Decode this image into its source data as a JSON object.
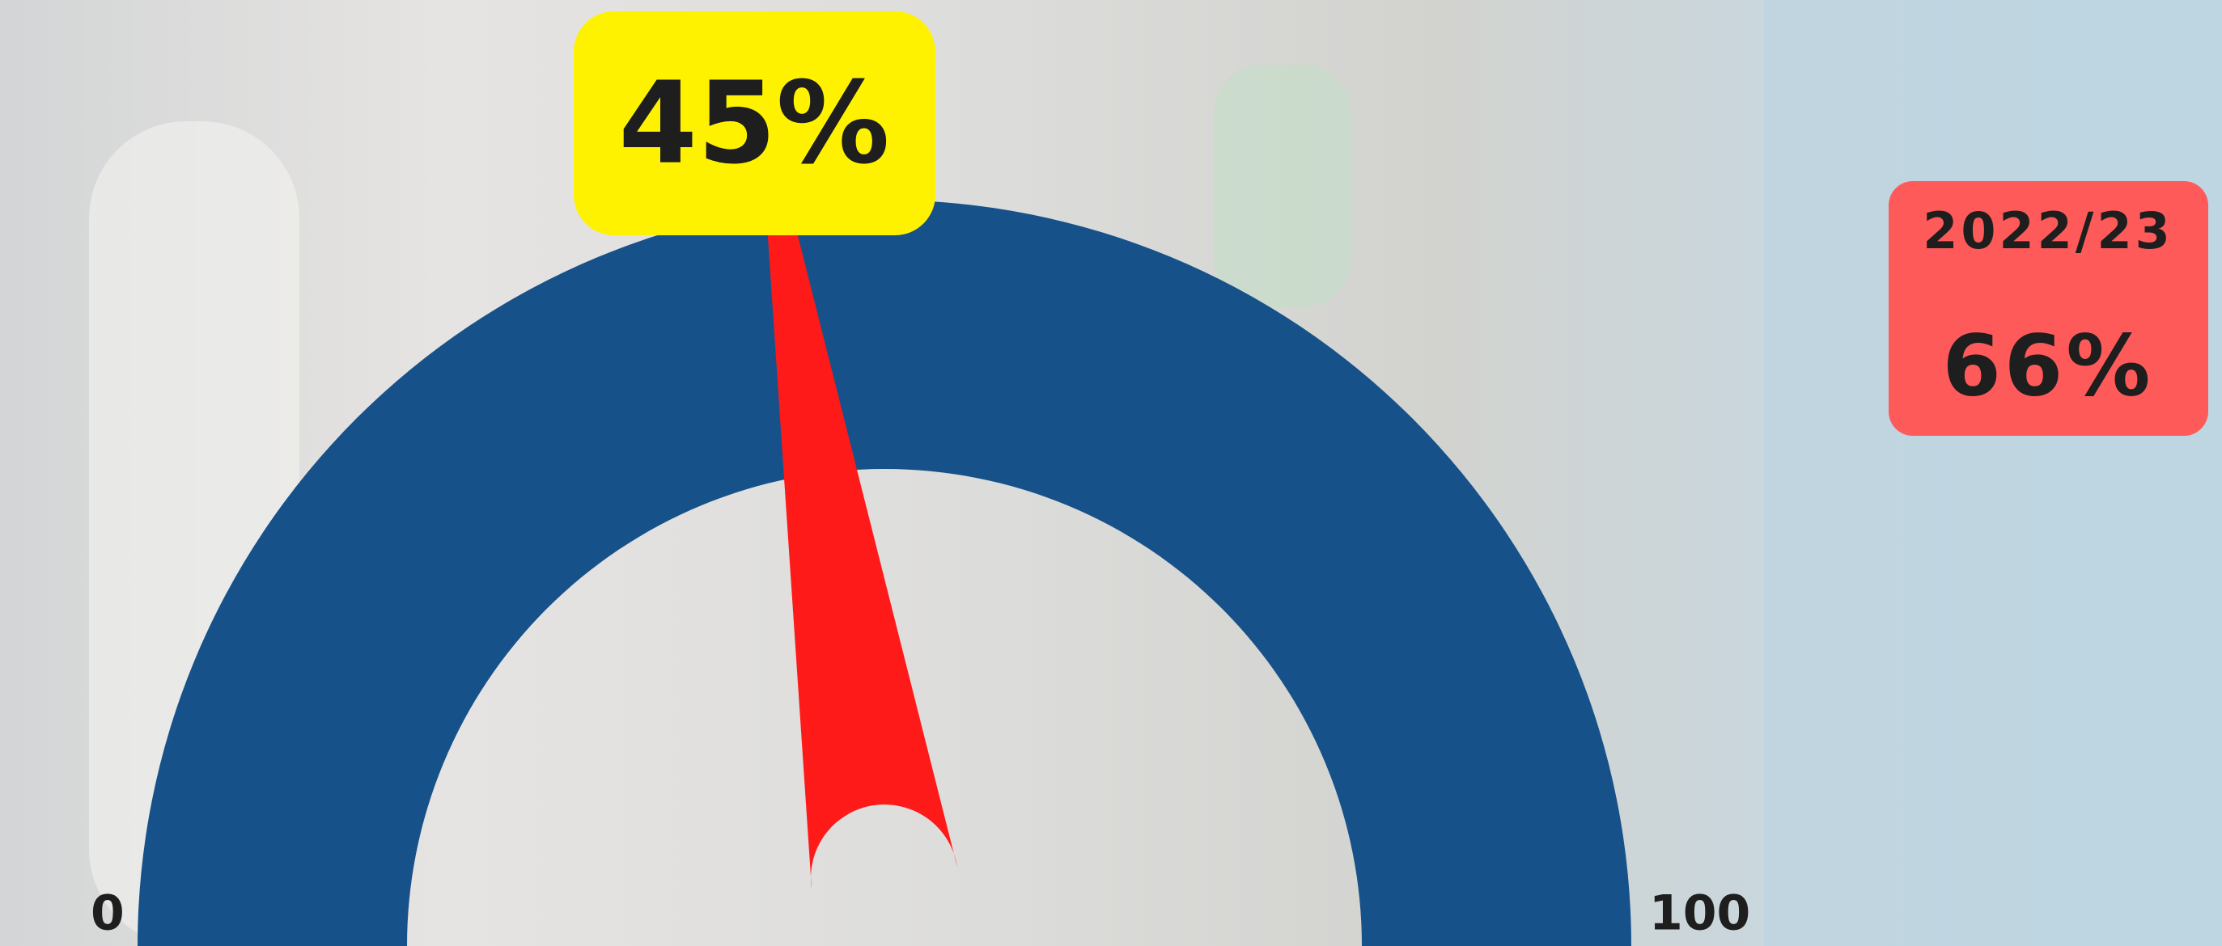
{
  "chart_data": {
    "type": "gauge",
    "values": [
      45
    ],
    "value_labels": [
      "45%"
    ],
    "ylim": [
      0,
      100
    ],
    "yticks": [
      0,
      100
    ],
    "color": "#16518a",
    "needle_color": "#ff1a1a",
    "value_box_color": "#fff200",
    "comparison": {
      "label": "2022/23",
      "values": [
        66
      ],
      "value_labels": [
        "66%"
      ],
      "color": "#ff5a5a"
    }
  }
}
